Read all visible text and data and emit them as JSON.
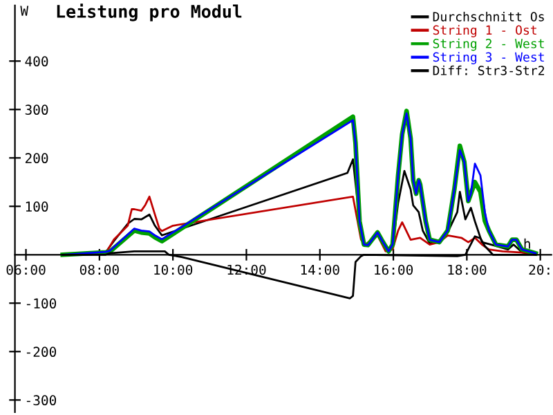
{
  "chart_data": {
    "type": "line",
    "title": "Leistung pro Modul",
    "xlabel": "h",
    "ylabel": "W",
    "xlim": [
      5.7,
      20.3
    ],
    "ylim": [
      -325,
      515
    ],
    "xticks": [
      {
        "value": 6,
        "label": "06:00"
      },
      {
        "value": 8,
        "label": "08:00"
      },
      {
        "value": 10,
        "label": "10:00"
      },
      {
        "value": 12,
        "label": "12:00"
      },
      {
        "value": 14,
        "label": "14:00"
      },
      {
        "value": 16,
        "label": "16:00"
      },
      {
        "value": 18,
        "label": "18:00"
      },
      {
        "value": 20,
        "label": "20:"
      }
    ],
    "yticks": [
      -300,
      -200,
      -100,
      100,
      200,
      300,
      400
    ],
    "grid": false,
    "legend": "top right",
    "marker": "none",
    "line_style": "solid",
    "series": [
      {
        "name": "Durchschnitt Os",
        "color": "#000000",
        "x": [
          7.0,
          8.17,
          8.39,
          8.77,
          8.95,
          9.14,
          9.36,
          9.51,
          9.7,
          14.75,
          14.9,
          15.01,
          15.08,
          15.2,
          15.31,
          15.57,
          15.68,
          15.87,
          15.98,
          16.13,
          16.3,
          16.47,
          16.54,
          16.69,
          16.8,
          16.99,
          17.25,
          17.44,
          17.74,
          17.81,
          17.96,
          18.11,
          18.22,
          18.41,
          18.71,
          19.12,
          19.27,
          19.5,
          19.87
        ],
        "values": [
          0,
          5,
          28,
          64,
          74,
          73,
          83,
          60,
          40,
          169,
          197,
          120,
          69,
          20,
          20,
          40,
          28,
          7,
          15,
          107,
          173,
          135,
          102,
          88,
          50,
          23,
          30,
          40,
          88,
          130,
          73,
          97,
          69,
          26,
          20,
          11,
          21,
          5,
          0
        ]
      },
      {
        "name": "String 1 - Ost",
        "color": "#c00000",
        "x": [
          7.0,
          8.17,
          8.39,
          8.77,
          8.88,
          8.95,
          9.14,
          9.25,
          9.36,
          9.51,
          9.63,
          9.7,
          10.0,
          14.9,
          15.12,
          15.23,
          15.57,
          15.79,
          15.98,
          16.13,
          16.24,
          16.47,
          16.73,
          16.99,
          17.25,
          17.48,
          17.85,
          18.04,
          18.22,
          18.41,
          18.6,
          18.97,
          19.87
        ],
        "values": [
          0,
          3,
          31,
          60,
          94,
          94,
          91,
          103,
          120,
          83,
          54,
          49,
          60,
          120,
          31,
          21,
          40,
          7,
          11,
          50,
          67,
          31,
          35,
          21,
          26,
          40,
          35,
          26,
          35,
          21,
          11,
          7,
          3
        ]
      },
      {
        "name": "String 2 - West",
        "color": "#00a000",
        "x": [
          7.0,
          8.17,
          8.28,
          8.95,
          9.14,
          9.36,
          9.51,
          9.7,
          14.9,
          14.97,
          15.08,
          15.2,
          15.31,
          15.57,
          15.68,
          15.87,
          15.98,
          16.13,
          16.24,
          16.36,
          16.47,
          16.54,
          16.62,
          16.69,
          16.73,
          16.88,
          16.99,
          17.25,
          17.48,
          17.66,
          17.81,
          17.93,
          18.04,
          18.11,
          18.22,
          18.37,
          18.49,
          18.6,
          18.79,
          19.12,
          19.23,
          19.35,
          19.5,
          19.87
        ],
        "values": [
          0,
          5,
          6,
          50,
          46,
          44,
          36,
          28,
          285,
          231,
          69,
          21,
          20,
          46,
          31,
          7,
          21,
          164,
          249,
          297,
          240,
          154,
          126,
          154,
          145,
          69,
          31,
          26,
          50,
          135,
          225,
          192,
          111,
          126,
          150,
          130,
          70,
          50,
          21,
          17,
          31,
          31,
          11,
          3
        ]
      },
      {
        "name": "String 3 - West",
        "color": "#0000ff",
        "x": [
          7.0,
          8.17,
          8.28,
          8.95,
          9.14,
          9.36,
          9.51,
          9.7,
          14.9,
          14.97,
          15.08,
          15.2,
          15.31,
          15.57,
          15.68,
          15.87,
          15.98,
          16.13,
          16.24,
          16.36,
          16.47,
          16.54,
          16.62,
          16.69,
          16.73,
          16.88,
          16.99,
          17.25,
          17.48,
          17.66,
          17.81,
          17.93,
          18.04,
          18.11,
          18.22,
          18.37,
          18.49,
          18.6,
          18.79,
          19.12,
          19.23,
          19.35,
          19.5,
          19.87
        ],
        "values": [
          0,
          6,
          8,
          54,
          50,
          48,
          40,
          32,
          278,
          231,
          69,
          21,
          20,
          46,
          31,
          7,
          21,
          164,
          249,
          292,
          240,
          154,
          126,
          154,
          145,
          69,
          31,
          26,
          50,
          135,
          216,
          192,
          111,
          126,
          188,
          164,
          88,
          50,
          21,
          17,
          31,
          31,
          11,
          3
        ]
      },
      {
        "name": "Diff: Str3-Str2",
        "color": "#000000",
        "x": [
          7.0,
          8.17,
          8.28,
          8.95,
          9.78,
          9.89,
          10.26,
          14.82,
          14.9,
          14.97,
          15.12,
          15.2,
          17.74,
          17.96,
          18.22,
          18.37,
          18.49,
          18.71,
          19.87
        ],
        "values": [
          0,
          0,
          3,
          7,
          7,
          0,
          -5,
          -90,
          -85,
          -15,
          -3,
          0,
          -3,
          0,
          38,
          34,
          18,
          0,
          0
        ]
      }
    ]
  }
}
